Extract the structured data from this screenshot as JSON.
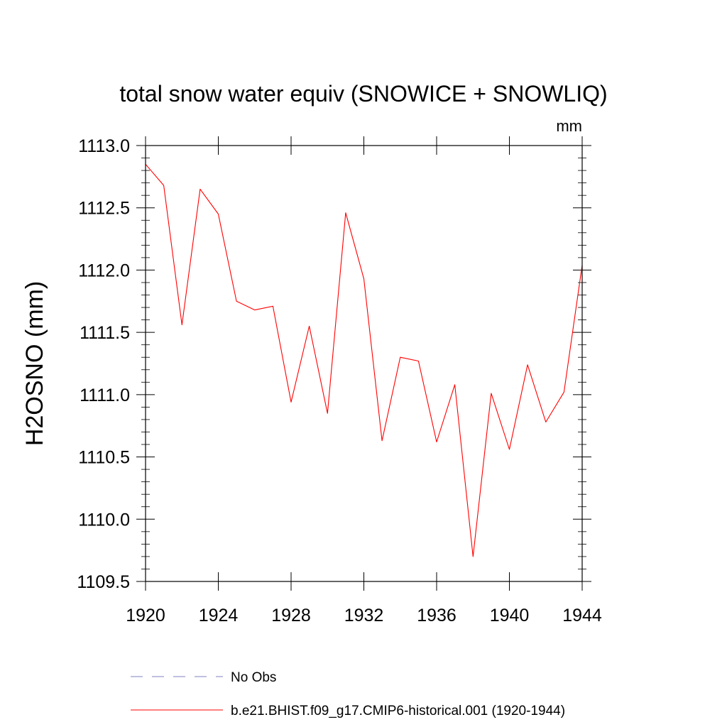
{
  "chart_data": {
    "type": "line",
    "title": "total snow water equiv (SNOWICE + SNOWLIQ)",
    "units_label": "mm",
    "xlabel": "",
    "ylabel": "H2OSNO  (mm)",
    "xlim": [
      1920,
      1944
    ],
    "ylim": [
      1109.5,
      1113.0
    ],
    "xticks": [
      1920,
      1924,
      1928,
      1932,
      1936,
      1940,
      1944
    ],
    "xtick_labels": [
      "1920",
      "1924",
      "1928",
      "1932",
      "1936",
      "1940",
      "1944"
    ],
    "yticks": [
      1109.5,
      1110.0,
      1110.5,
      1111.0,
      1111.5,
      1112.0,
      1112.5,
      1113.0
    ],
    "ytick_labels": [
      "1109.5",
      "1110.0",
      "1110.5",
      "1111.0",
      "1111.5",
      "1112.0",
      "1112.5",
      "1113.0"
    ],
    "grid": false,
    "series": [
      {
        "name": "b.e21.BHIST.f09_g17.CMIP6-historical.001 (1920-1944)",
        "color": "#ff0000",
        "style": "solid",
        "x": [
          1920,
          1921,
          1922,
          1923,
          1924,
          1925,
          1926,
          1927,
          1928,
          1929,
          1930,
          1931,
          1932,
          1933,
          1934,
          1935,
          1936,
          1937,
          1938,
          1939,
          1940,
          1941,
          1942,
          1943,
          1944
        ],
        "y": [
          1112.85,
          1112.68,
          1111.56,
          1112.65,
          1112.45,
          1111.75,
          1111.68,
          1111.71,
          1110.94,
          1111.55,
          1110.85,
          1112.46,
          1111.93,
          1110.63,
          1111.3,
          1111.27,
          1110.62,
          1111.08,
          1109.7,
          1111.01,
          1110.56,
          1111.24,
          1110.78,
          1111.02,
          1112.04
        ]
      }
    ],
    "legend": {
      "placement": "bottom",
      "entries": [
        {
          "label": "No Obs",
          "color": "#8080c0",
          "style": "dashed"
        },
        {
          "label": "b.e21.BHIST.f09_g17.CMIP6-historical.001 (1920-1944)",
          "color": "#ff0000",
          "style": "solid"
        }
      ]
    }
  }
}
